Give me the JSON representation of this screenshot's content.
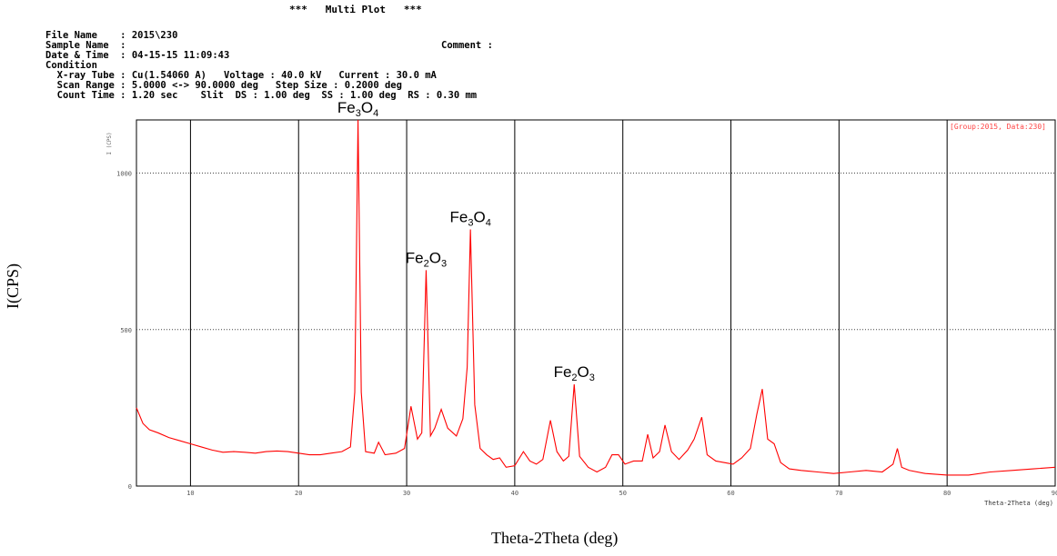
{
  "header": {
    "title": "***   Multi Plot   ***",
    "file_name": "File Name    : 2015\\230",
    "sample_name": "Sample Name  :",
    "comment": "Comment :",
    "date_time": "Date & Time  : 04-15-15 11:09:43",
    "condition": "Condition",
    "xray_line": "  X-ray Tube : Cu(1.54060 A)   Voltage : 40.0 kV   Current : 30.0 mA",
    "scan_line": "  Scan Range : 5.0000 <-> 90.0000 deg   Step Size : 0.2000 deg",
    "count_line": "  Count Time : 1.20 sec    Slit  DS : 1.00 deg  SS : 1.00 deg  RS : 0.30 mm"
  },
  "chart_data": {
    "type": "line",
    "group_label": "[Group:2015, Data:230]",
    "inner_ylabel": "I (CPS)",
    "inner_xlabel": "Theta-2Theta (deg)",
    "ylabel": "I(CPS)",
    "xlabel": "Theta-2Theta (deg)",
    "xlim": [
      5,
      90
    ],
    "ylim": [
      0,
      1170
    ],
    "x_ticks": [
      10,
      20,
      30,
      40,
      50,
      60,
      70,
      80,
      90
    ],
    "y_ticks": [
      0,
      500,
      1000
    ],
    "grid": true,
    "line_color": "#ff0000",
    "series": [
      {
        "x": [
          5,
          5.6,
          6.2,
          7,
          8,
          9,
          10,
          11,
          12,
          13,
          14,
          15,
          16,
          17,
          18,
          19,
          20,
          21,
          22,
          23,
          24,
          24.8,
          25.2,
          25.5,
          25.8,
          26.2,
          27,
          27.4,
          28,
          29,
          29.8,
          30.4,
          31,
          31.4,
          31.8,
          32.2,
          32.6,
          33.2,
          33.8,
          34.6,
          35.2,
          35.6,
          35.9,
          36.3,
          36.8,
          37.4,
          38,
          38.6,
          39.2,
          40,
          40.8,
          41.4,
          42,
          42.6,
          43.3,
          43.9,
          44.5,
          45,
          45.5,
          46,
          46.8,
          47.6,
          48.4,
          49,
          49.6,
          50.2,
          51,
          51.8,
          52.3,
          52.8,
          53.4,
          53.9,
          54.5,
          55.2,
          56,
          56.6,
          57.3,
          57.8,
          58.6,
          59.4,
          60.2,
          61,
          61.8,
          62.4,
          62.9,
          63.4,
          64,
          64.6,
          65.4,
          66.5,
          68,
          69.5,
          71,
          72.5,
          74,
          75,
          75.4,
          75.8,
          76.5,
          78,
          80,
          82,
          84,
          86,
          88,
          90
        ],
        "y": [
          250,
          200,
          180,
          170,
          155,
          145,
          135,
          125,
          115,
          108,
          110,
          108,
          105,
          110,
          112,
          110,
          105,
          100,
          100,
          105,
          110,
          125,
          300,
          1170,
          300,
          110,
          105,
          140,
          100,
          105,
          120,
          255,
          150,
          170,
          690,
          160,
          185,
          245,
          185,
          160,
          215,
          380,
          820,
          260,
          120,
          100,
          85,
          90,
          60,
          65,
          110,
          80,
          70,
          85,
          210,
          110,
          80,
          95,
          325,
          95,
          60,
          45,
          60,
          100,
          100,
          70,
          80,
          80,
          165,
          90,
          110,
          195,
          110,
          85,
          115,
          150,
          220,
          100,
          80,
          75,
          70,
          90,
          120,
          230,
          310,
          150,
          135,
          75,
          55,
          50,
          45,
          40,
          45,
          50,
          45,
          70,
          120,
          60,
          50,
          40,
          35,
          35,
          45,
          50,
          55,
          60
        ]
      }
    ],
    "annotations": [
      {
        "base": "Fe",
        "sub1": "3",
        "mid": "O",
        "sub2": "4",
        "x": 25.5,
        "y": 1170
      },
      {
        "base": "Fe",
        "sub1": "2",
        "mid": "O",
        "sub2": "3",
        "x": 31.8,
        "y": 690
      },
      {
        "base": "Fe",
        "sub1": "3",
        "mid": "O",
        "sub2": "4",
        "x": 35.9,
        "y": 820
      },
      {
        "base": "Fe",
        "sub1": "2",
        "mid": "O",
        "sub2": "3",
        "x": 45.5,
        "y": 325
      }
    ]
  }
}
